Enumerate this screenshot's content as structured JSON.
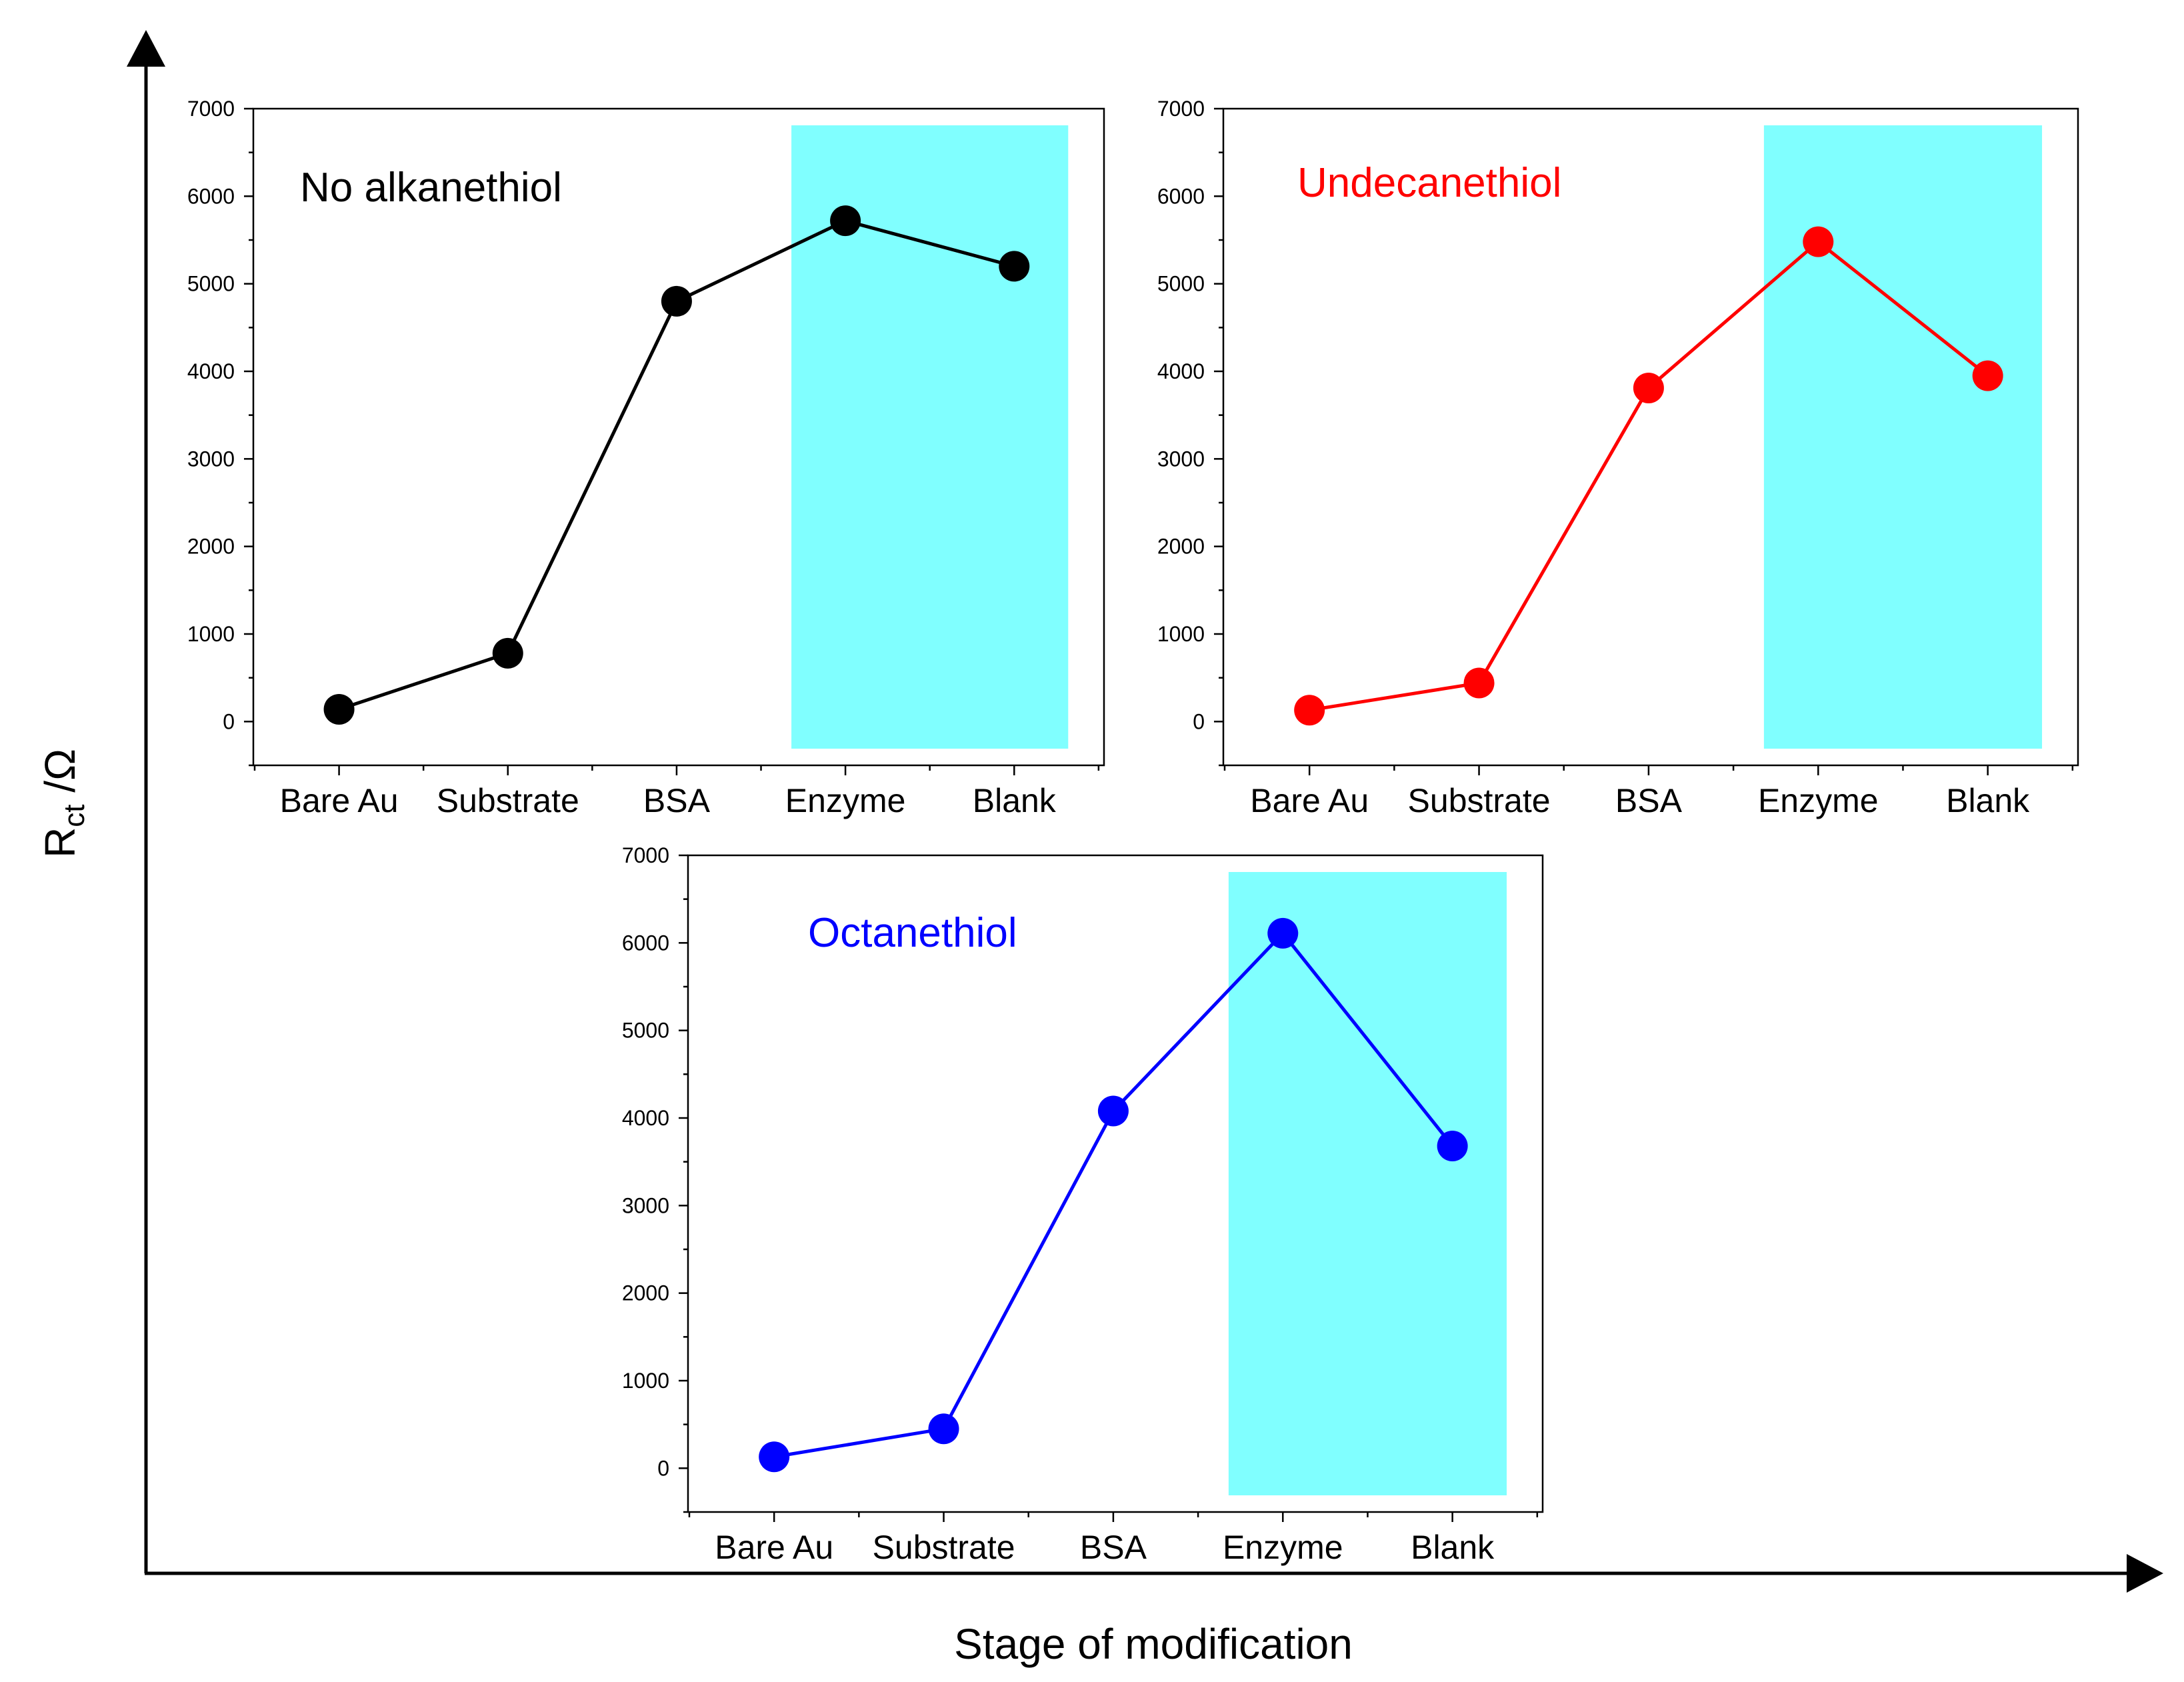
{
  "chart_data": [
    {
      "type": "line",
      "title": "No alkanethiol",
      "title_color": "#000000",
      "series_color": "#000000",
      "categories": [
        "Bare Au",
        "Substrate",
        "BSA",
        "Enzyme",
        "Blank"
      ],
      "values": [
        140,
        780,
        4800,
        5720,
        5200
      ],
      "ylim": [
        -500,
        7000
      ],
      "yticks": [
        0,
        1000,
        2000,
        3000,
        4000,
        5000,
        6000,
        7000
      ],
      "highlight": {
        "from_category": "Enzyme",
        "to_category": "Blank",
        "color": "#80FFFF"
      }
    },
    {
      "type": "line",
      "title": "Undecanethiol",
      "title_color": "#FF0000",
      "series_color": "#FF0000",
      "categories": [
        "Bare Au",
        "Substrate",
        "BSA",
        "Enzyme",
        "Blank"
      ],
      "values": [
        130,
        440,
        3810,
        5480,
        3950
      ],
      "ylim": [
        -500,
        7000
      ],
      "yticks": [
        0,
        1000,
        2000,
        3000,
        4000,
        5000,
        6000,
        7000
      ],
      "highlight": {
        "from_category": "Enzyme",
        "to_category": "Blank",
        "color": "#80FFFF"
      }
    },
    {
      "type": "line",
      "title": "Octanethiol",
      "title_color": "#0000FF",
      "series_color": "#0000FF",
      "categories": [
        "Bare Au",
        "Substrate",
        "BSA",
        "Enzyme",
        "Blank"
      ],
      "values": [
        130,
        450,
        4080,
        6110,
        3680
      ],
      "ylim": [
        -500,
        7000
      ],
      "yticks": [
        0,
        1000,
        2000,
        3000,
        4000,
        5000,
        6000,
        7000
      ],
      "highlight": {
        "from_category": "Enzyme",
        "to_category": "Blank",
        "color": "#80FFFF"
      }
    }
  ],
  "axes": {
    "ylabel_main": "R",
    "ylabel_sub": "ct",
    "ylabel_unit": " /Ω",
    "xlabel": "Stage of modification"
  }
}
